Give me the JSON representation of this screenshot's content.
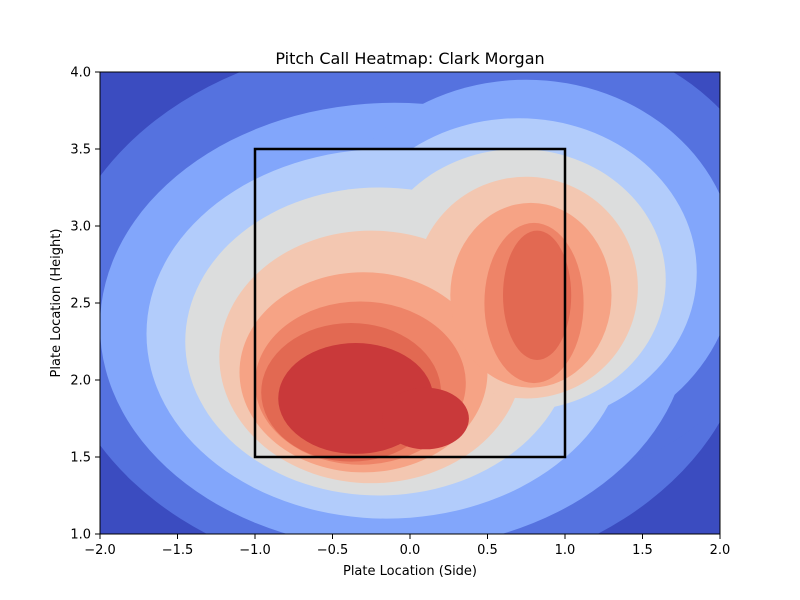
{
  "chart_data": {
    "type": "heatmap",
    "style": "filled-contour (kernel density)",
    "title": "Pitch Call Heatmap: Clark Morgan",
    "xlabel": "Plate Location (Side)",
    "ylabel": "Plate Location (Height)",
    "xlim": [
      -2.0,
      2.0
    ],
    "ylim": [
      1.0,
      4.0
    ],
    "xticks": [
      -2.0,
      -1.5,
      -1.0,
      -0.5,
      0.0,
      0.5,
      1.0,
      1.5,
      2.0
    ],
    "xtick_labels": [
      "−2.0",
      "−1.5",
      "−1.0",
      "−0.5",
      "0.0",
      "0.5",
      "1.0",
      "1.5",
      "2.0"
    ],
    "yticks": [
      1.0,
      1.5,
      2.0,
      2.5,
      3.0,
      3.5,
      4.0
    ],
    "ytick_labels": [
      "1.0",
      "1.5",
      "2.0",
      "2.5",
      "3.0",
      "3.5",
      "4.0"
    ],
    "colormap": "coolwarm",
    "level_colors": [
      "#3b4cc0",
      "#5572df",
      "#82a6fb",
      "#b2ccfb",
      "#dcdddd",
      "#f3c7b1",
      "#f6a385",
      "#ee8468",
      "#e26952",
      "#c9393a"
    ],
    "density_peaks": [
      {
        "x": -0.4,
        "y": 1.85,
        "weight": 1.0
      },
      {
        "x": 0.8,
        "y": 2.7,
        "weight": 0.8
      }
    ],
    "strike_zone": {
      "x": [
        -1.0,
        1.0
      ],
      "y": [
        1.5,
        3.5
      ],
      "color": "#000000"
    },
    "grid": false,
    "legend": false
  }
}
